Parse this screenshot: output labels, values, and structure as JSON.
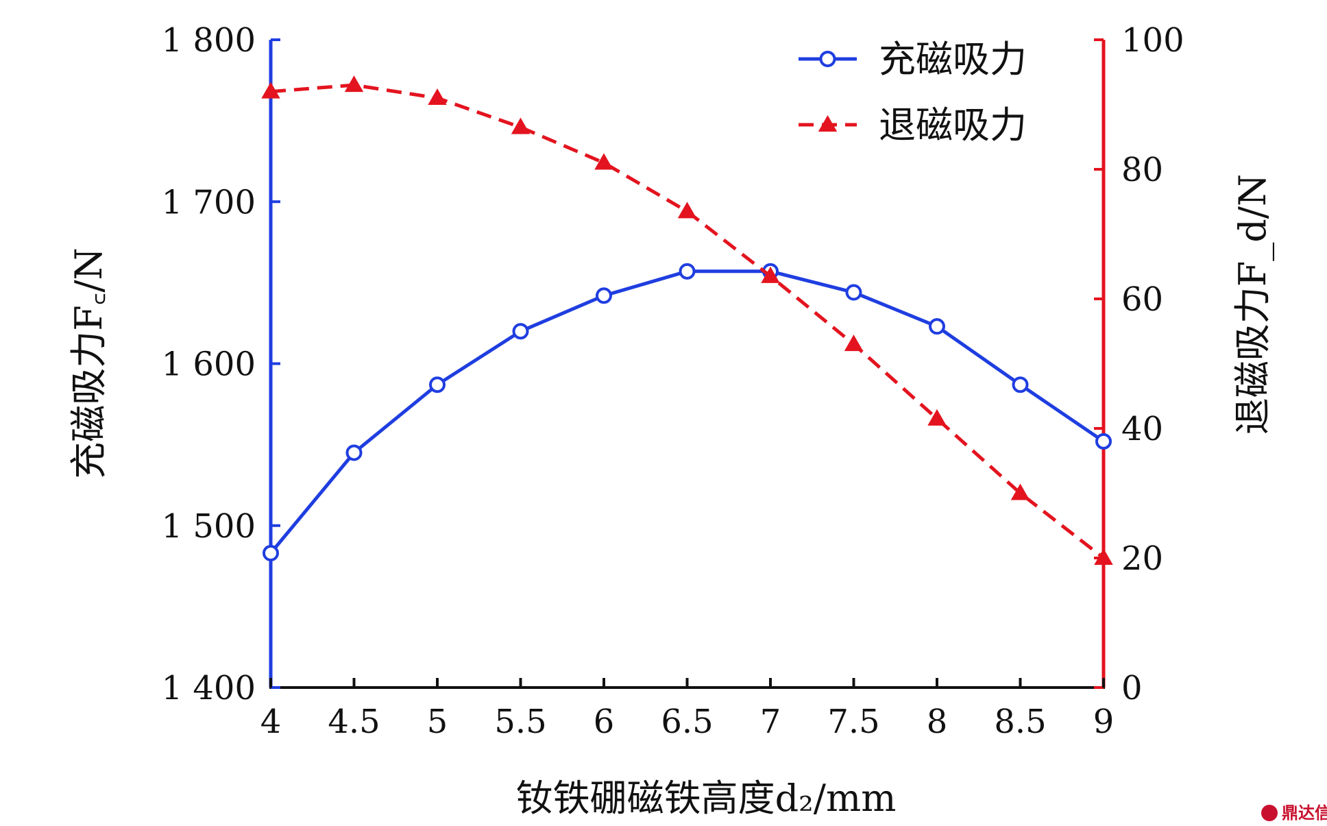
{
  "chart_data": {
    "type": "line",
    "title": "",
    "x": [
      4,
      4.5,
      5,
      5.5,
      6,
      6.5,
      7,
      7.5,
      8,
      8.5,
      9
    ],
    "x_tick_labels": [
      "4",
      "4.5",
      "5",
      "5.5",
      "6",
      "6.5",
      "7",
      "7.5",
      "8",
      "8.5",
      "9"
    ],
    "xlabel": "钕铁硼磁铁高度d₂/mm",
    "ylabel_left": "充磁吸力F꜀/N",
    "ylabel_right": "退磁吸力F_d/N",
    "ylim_left": [
      1400,
      1800
    ],
    "yticks_left": [
      1400,
      1500,
      1600,
      1700,
      1800
    ],
    "ytick_labels_left": [
      "1 400",
      "1 500",
      "1 600",
      "1 700",
      "1 800"
    ],
    "ylim_right": [
      0,
      100
    ],
    "yticks_right": [
      0,
      20,
      40,
      60,
      80,
      100
    ],
    "ytick_labels_right": [
      "0",
      "20",
      "40",
      "60",
      "80",
      "100"
    ],
    "grid": false,
    "legend_position": "top-right",
    "series": [
      {
        "name": "充磁吸力",
        "axis": "left",
        "color": "#1f3ee0",
        "line_style": "solid",
        "marker": "circle-open",
        "values": [
          1483,
          1545,
          1587,
          1620,
          1642,
          1657,
          1657,
          1644,
          1623,
          1587,
          1552
        ]
      },
      {
        "name": "退磁吸力",
        "axis": "right",
        "color": "#e3141f",
        "line_style": "dashed",
        "marker": "triangle",
        "values": [
          92,
          93,
          91,
          86.5,
          81,
          73.5,
          63.5,
          53,
          41.5,
          30,
          20
        ]
      }
    ]
  },
  "axis_colors": {
    "left": "#1f3ee0",
    "right": "#e3141f",
    "bottom": "#111111"
  },
  "watermark": "鼎达信"
}
